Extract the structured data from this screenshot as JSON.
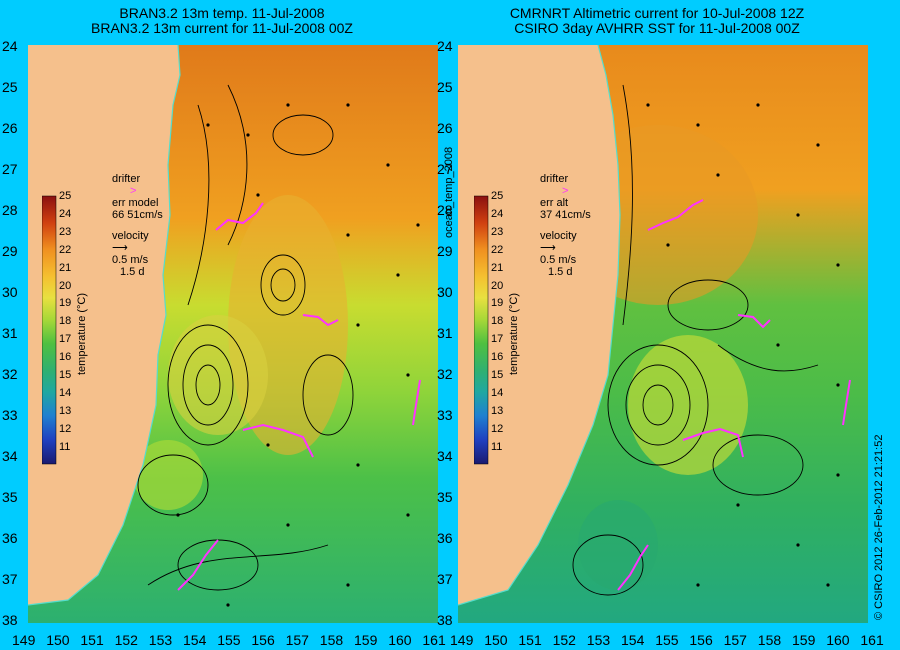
{
  "left_panel": {
    "title_line1": "BRAN3.2 13m temp. 11-Jul-2008",
    "title_line2": "BRAN3.2 13m current for 11-Jul-2008 00Z",
    "legend": {
      "drifter": "drifter",
      "err_line1": "err model",
      "err_line2": "66 51cm/s",
      "velocity": "velocity",
      "scale1": "0.5 m/s",
      "scale2": "1.5 d"
    }
  },
  "right_panel": {
    "title_line1": "CMRNRT Altimetric current for 10-Jul-2008 12Z",
    "title_line2": "CSIRO 3day AVHRR SST for 11-Jul-2008 00Z",
    "legend": {
      "drifter": "drifter",
      "err_line1": "err alt",
      "err_line2": "37 41cm/s",
      "velocity": "velocity",
      "scale1": "0.5 m/s",
      "scale2": "1.5 d"
    }
  },
  "lat_labels": [
    "24",
    "25",
    "26",
    "27",
    "28",
    "29",
    "30",
    "31",
    "32",
    "33",
    "34",
    "35",
    "36",
    "37",
    "38"
  ],
  "lon_labels": [
    "149",
    "150",
    "151",
    "152",
    "153",
    "154",
    "155",
    "156",
    "157",
    "158",
    "159",
    "160",
    "161"
  ],
  "colorbar": {
    "ticks": [
      "25",
      "24",
      "23",
      "22",
      "21",
      "20",
      "19",
      "18",
      "17",
      "16",
      "15",
      "14",
      "13",
      "12",
      "11"
    ],
    "label": "temperature (°C)"
  },
  "center_label": "ocean_temp_2008",
  "credit": "© CSIRO 2012   26-Feb-2012 21:21:52",
  "colors": {
    "background": "#00ccff",
    "land": "#f5c08c",
    "drifter": "#ff33ff",
    "coast_line": "#55ddcc"
  }
}
